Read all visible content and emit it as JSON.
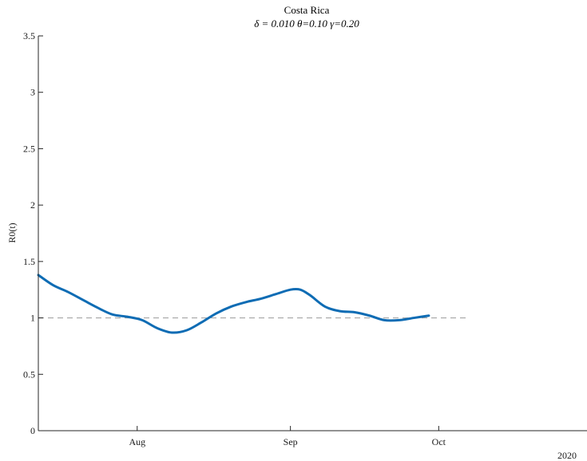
{
  "chart_data": {
    "type": "line",
    "title": "Costa Rica",
    "subtitle": "δ = 0.010  θ=0.10  γ=0.20",
    "ylabel": "R0(t)",
    "xlabel": "",
    "year_label": "2020",
    "ylim": [
      0,
      3.5
    ],
    "xlim": [
      "2020-07-12",
      "2020-10-31"
    ],
    "y_ticks": [
      {
        "value": 0,
        "label": "0"
      },
      {
        "value": 0.5,
        "label": "0.5"
      },
      {
        "value": 1,
        "label": "1"
      },
      {
        "value": 1.5,
        "label": "1.5"
      },
      {
        "value": 2,
        "label": "2"
      },
      {
        "value": 2.5,
        "label": "2.5"
      },
      {
        "value": 3,
        "label": "3"
      },
      {
        "value": 3.5,
        "label": "3.5"
      }
    ],
    "x_ticks": [
      {
        "date": "2020-08-01",
        "label": "Aug"
      },
      {
        "date": "2020-09-01",
        "label": "Sep"
      },
      {
        "date": "2020-10-01",
        "label": "Oct"
      }
    ],
    "reference_line": {
      "y": 1,
      "x_start": "2020-07-12",
      "x_end": "2020-10-07",
      "style": "dashed",
      "color": "#9a9a9a"
    },
    "series": [
      {
        "color": "#0e6cb4",
        "points": [
          {
            "x": "2020-07-12",
            "y": 1.38
          },
          {
            "x": "2020-07-15",
            "y": 1.29
          },
          {
            "x": "2020-07-18",
            "y": 1.23
          },
          {
            "x": "2020-07-21",
            "y": 1.16
          },
          {
            "x": "2020-07-24",
            "y": 1.09
          },
          {
            "x": "2020-07-27",
            "y": 1.03
          },
          {
            "x": "2020-07-30",
            "y": 1.01
          },
          {
            "x": "2020-08-02",
            "y": 0.98
          },
          {
            "x": "2020-08-05",
            "y": 0.91
          },
          {
            "x": "2020-08-08",
            "y": 0.87
          },
          {
            "x": "2020-08-11",
            "y": 0.89
          },
          {
            "x": "2020-08-14",
            "y": 0.96
          },
          {
            "x": "2020-08-17",
            "y": 1.04
          },
          {
            "x": "2020-08-20",
            "y": 1.1
          },
          {
            "x": "2020-08-23",
            "y": 1.14
          },
          {
            "x": "2020-08-26",
            "y": 1.17
          },
          {
            "x": "2020-08-29",
            "y": 1.21
          },
          {
            "x": "2020-09-01",
            "y": 1.25
          },
          {
            "x": "2020-09-03",
            "y": 1.25
          },
          {
            "x": "2020-09-05",
            "y": 1.2
          },
          {
            "x": "2020-09-08",
            "y": 1.1
          },
          {
            "x": "2020-09-11",
            "y": 1.06
          },
          {
            "x": "2020-09-14",
            "y": 1.05
          },
          {
            "x": "2020-09-17",
            "y": 1.02
          },
          {
            "x": "2020-09-20",
            "y": 0.98
          },
          {
            "x": "2020-09-23",
            "y": 0.98
          },
          {
            "x": "2020-09-26",
            "y": 1.0
          },
          {
            "x": "2020-09-29",
            "y": 1.02
          }
        ]
      }
    ]
  }
}
